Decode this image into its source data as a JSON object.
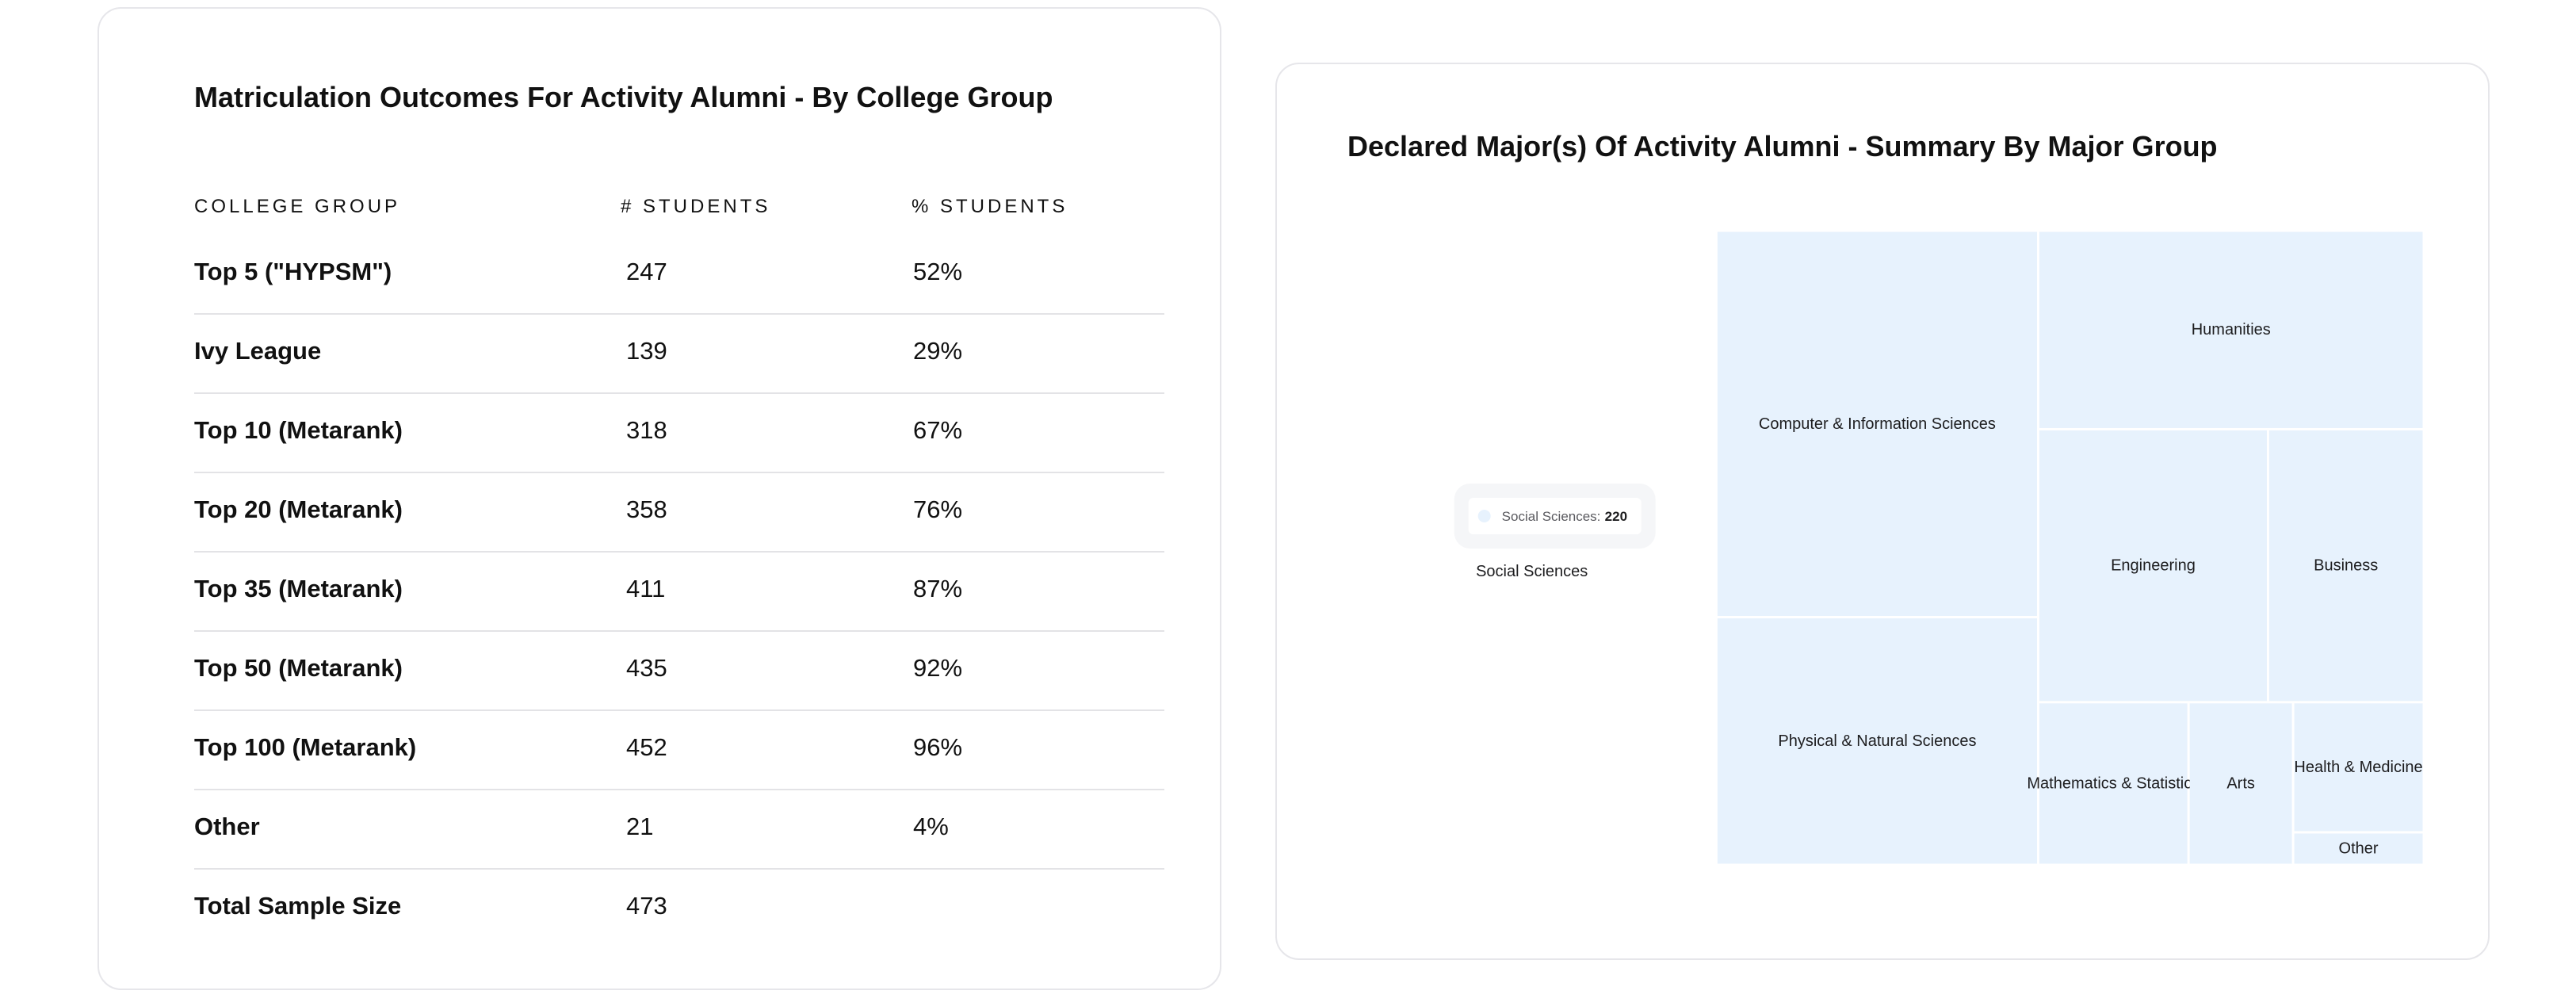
{
  "outcomes": {
    "title": "Matriculation Outcomes For Activity Alumni - By College Group",
    "headers": {
      "group": "COLLEGE GROUP",
      "students": "# STUDENTS",
      "pct": "% STUDENTS"
    },
    "rows": [
      {
        "group": "Top 5 (\"HYPSM\")",
        "students": "247",
        "pct": "52%"
      },
      {
        "group": "Ivy League",
        "students": "139",
        "pct": "29%"
      },
      {
        "group": "Top 10 (Metarank)",
        "students": "318",
        "pct": "67%"
      },
      {
        "group": "Top 20 (Metarank)",
        "students": "358",
        "pct": "76%"
      },
      {
        "group": "Top 35 (Metarank)",
        "students": "411",
        "pct": "87%"
      },
      {
        "group": "Top 50 (Metarank)",
        "students": "435",
        "pct": "92%"
      },
      {
        "group": "Top 100 (Metarank)",
        "students": "452",
        "pct": "96%"
      },
      {
        "group": "Other",
        "students": "21",
        "pct": "4%"
      },
      {
        "group": "Total Sample Size",
        "students": "473",
        "pct": ""
      }
    ]
  },
  "majors": {
    "title": "Declared Major(s) Of Activity Alumni - Summary By Major Group",
    "tooltip": {
      "label": "Social Sciences:",
      "value": "220"
    }
  },
  "chart_data": {
    "type": "treemap",
    "title": "Declared Major(s) Of Activity Alumni - Summary By Major Group",
    "hovered": "Social Sciences",
    "tile_color": "#e7f2fd",
    "items": [
      {
        "name": "Social Sciences",
        "value": 220
      },
      {
        "name": "Computer & Information Sciences",
        "value": 117
      },
      {
        "name": "Physical & Natural Sciences",
        "value": 75
      },
      {
        "name": "Humanities",
        "value": 72
      },
      {
        "name": "Engineering",
        "value": 59
      },
      {
        "name": "Business",
        "value": 40
      },
      {
        "name": "Mathematics & Statistics",
        "value": 23
      },
      {
        "name": "Arts",
        "value": 16
      },
      {
        "name": "Health & Medicine",
        "value": 16
      },
      {
        "name": "Other",
        "value": 4
      }
    ]
  }
}
